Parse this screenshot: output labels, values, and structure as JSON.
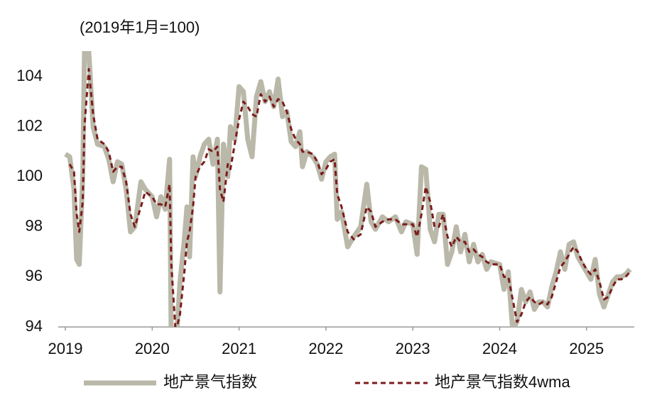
{
  "chart_data": {
    "type": "line",
    "subtitle": "(2019年1月=100)",
    "x": [
      2019.0,
      2019.05,
      2019.1,
      2019.13,
      2019.16,
      2019.2,
      2019.22,
      2019.27,
      2019.32,
      2019.37,
      2019.45,
      2019.5,
      2019.55,
      2019.6,
      2019.65,
      2019.7,
      2019.75,
      2019.8,
      2019.87,
      2019.92,
      2020.0,
      2020.05,
      2020.1,
      2020.15,
      2020.2,
      2020.22,
      2020.27,
      2020.32,
      2020.37,
      2020.4,
      2020.43,
      2020.47,
      2020.5,
      2020.55,
      2020.6,
      2020.65,
      2020.7,
      2020.75,
      2020.78,
      2020.82,
      2020.87,
      2020.9,
      2020.95,
      2021.0,
      2021.05,
      2021.1,
      2021.15,
      2021.2,
      2021.25,
      2021.3,
      2021.35,
      2021.4,
      2021.45,
      2021.5,
      2021.55,
      2021.6,
      2021.65,
      2021.7,
      2021.73,
      2021.78,
      2021.85,
      2021.9,
      2021.95,
      2022.0,
      2022.05,
      2022.1,
      2022.13,
      2022.18,
      2022.25,
      2022.32,
      2022.4,
      2022.47,
      2022.52,
      2022.57,
      2022.65,
      2022.72,
      2022.8,
      2022.87,
      2022.92,
      2023.0,
      2023.05,
      2023.1,
      2023.15,
      2023.2,
      2023.25,
      2023.3,
      2023.35,
      2023.4,
      2023.45,
      2023.5,
      2023.55,
      2023.6,
      2023.65,
      2023.7,
      2023.75,
      2023.8,
      2023.85,
      2023.9,
      2024.0,
      2024.05,
      2024.1,
      2024.15,
      2024.2,
      2024.25,
      2024.3,
      2024.35,
      2024.4,
      2024.45,
      2024.5,
      2024.55,
      2024.6,
      2024.65,
      2024.7,
      2024.75,
      2024.8,
      2024.85,
      2024.9,
      2024.95,
      2025.0,
      2025.05,
      2025.1,
      2025.15,
      2025.2,
      2025.25,
      2025.3,
      2025.35,
      2025.4,
      2025.45,
      2025.5
    ],
    "series": [
      {
        "name": "地产景气指数",
        "color": "#bab8a9",
        "style": "solid",
        "values": [
          100.9,
          100.8,
          99.5,
          96.7,
          96.5,
          100,
          105,
          105,
          102,
          101.3,
          101.2,
          100.7,
          99.8,
          100.6,
          100.5,
          99.5,
          97.8,
          98,
          99.8,
          99.5,
          99.2,
          98.4,
          99.2,
          98.7,
          100.7,
          93,
          93,
          95.8,
          97.5,
          98.8,
          96.8,
          100.8,
          100,
          100.8,
          101.3,
          101.5,
          100.5,
          101.5,
          95.4,
          101.3,
          100,
          102,
          101.5,
          103.6,
          103.4,
          101.5,
          100.8,
          103.2,
          103.8,
          103,
          103.4,
          102.8,
          103.9,
          102.4,
          102.6,
          101.4,
          101.2,
          101.8,
          100.4,
          101,
          100.8,
          100.5,
          99.9,
          100.6,
          100.8,
          100.9,
          98.3,
          98.6,
          97.2,
          97.6,
          98,
          99.7,
          98.2,
          97.9,
          98.4,
          98.2,
          98.4,
          97.8,
          98.2,
          98.1,
          96.9,
          100.4,
          100.3,
          97.9,
          97.4,
          98.5,
          98.5,
          96.5,
          97,
          98,
          97,
          97.7,
          96.6,
          97.3,
          96.6,
          96.9,
          96.3,
          96.6,
          96.5,
          95.5,
          96.2,
          93.9,
          94.2,
          95.5,
          95,
          95.4,
          94.7,
          95,
          95,
          94.8,
          95.6,
          96.2,
          97,
          96.3,
          97.3,
          97.4,
          96.8,
          96.5,
          96.2,
          95.9,
          96.7,
          95.3,
          94.8,
          95.3,
          95.8,
          96,
          96,
          96.1,
          96.3
        ]
      },
      {
        "name": "地产景气指数4wma",
        "color": "#7b1c1c",
        "style": "dashed",
        "values": [
          null,
          100.5,
          100.2,
          98.5,
          97.8,
          99,
          102,
          104.3,
          102.5,
          101.5,
          101.3,
          101,
          100.2,
          100.4,
          100.4,
          99.8,
          98.5,
          98,
          98.8,
          99.4,
          99.2,
          98.9,
          98.9,
          98.8,
          99.7,
          96.5,
          93.8,
          94.5,
          96.2,
          97.4,
          97.8,
          98.8,
          100,
          100.4,
          100.6,
          101.1,
          101,
          101.2,
          99.5,
          99,
          100.5,
          100.3,
          101.3,
          102.3,
          103,
          102.8,
          102.5,
          102.4,
          103.3,
          103,
          103.2,
          102.8,
          103.1,
          103,
          102.6,
          101.9,
          101.5,
          101.3,
          101,
          101,
          100.9,
          100.6,
          100.1,
          100.3,
          100.6,
          100.7,
          99.3,
          98.8,
          97.8,
          97.5,
          97.7,
          98.8,
          98.6,
          98,
          98.2,
          98.3,
          98.3,
          98.1,
          98.1,
          98.1,
          97.6,
          98.5,
          99.6,
          99,
          98,
          98,
          98.5,
          97.6,
          97.2,
          97.6,
          97.4,
          97.4,
          97,
          97.1,
          96.9,
          96.8,
          96.6,
          96.5,
          96.5,
          96,
          96,
          95.1,
          94.2,
          94.5,
          95,
          95.2,
          95,
          94.9,
          95,
          94.9,
          95.2,
          95.8,
          96.4,
          96.6,
          96.9,
          97.2,
          97,
          96.6,
          96.3,
          96.1,
          96.3,
          95.8,
          95.1,
          95.2,
          95.6,
          95.9,
          95.9,
          96,
          96.2
        ]
      }
    ],
    "xlim": [
      2019,
      2025.55
    ],
    "xticks": [
      2019,
      2020,
      2021,
      2022,
      2023,
      2024,
      2025
    ],
    "ylim": [
      94,
      105
    ],
    "yticks": [
      94,
      96,
      98,
      100,
      102,
      104
    ],
    "grid": false,
    "legend": "bottom"
  }
}
